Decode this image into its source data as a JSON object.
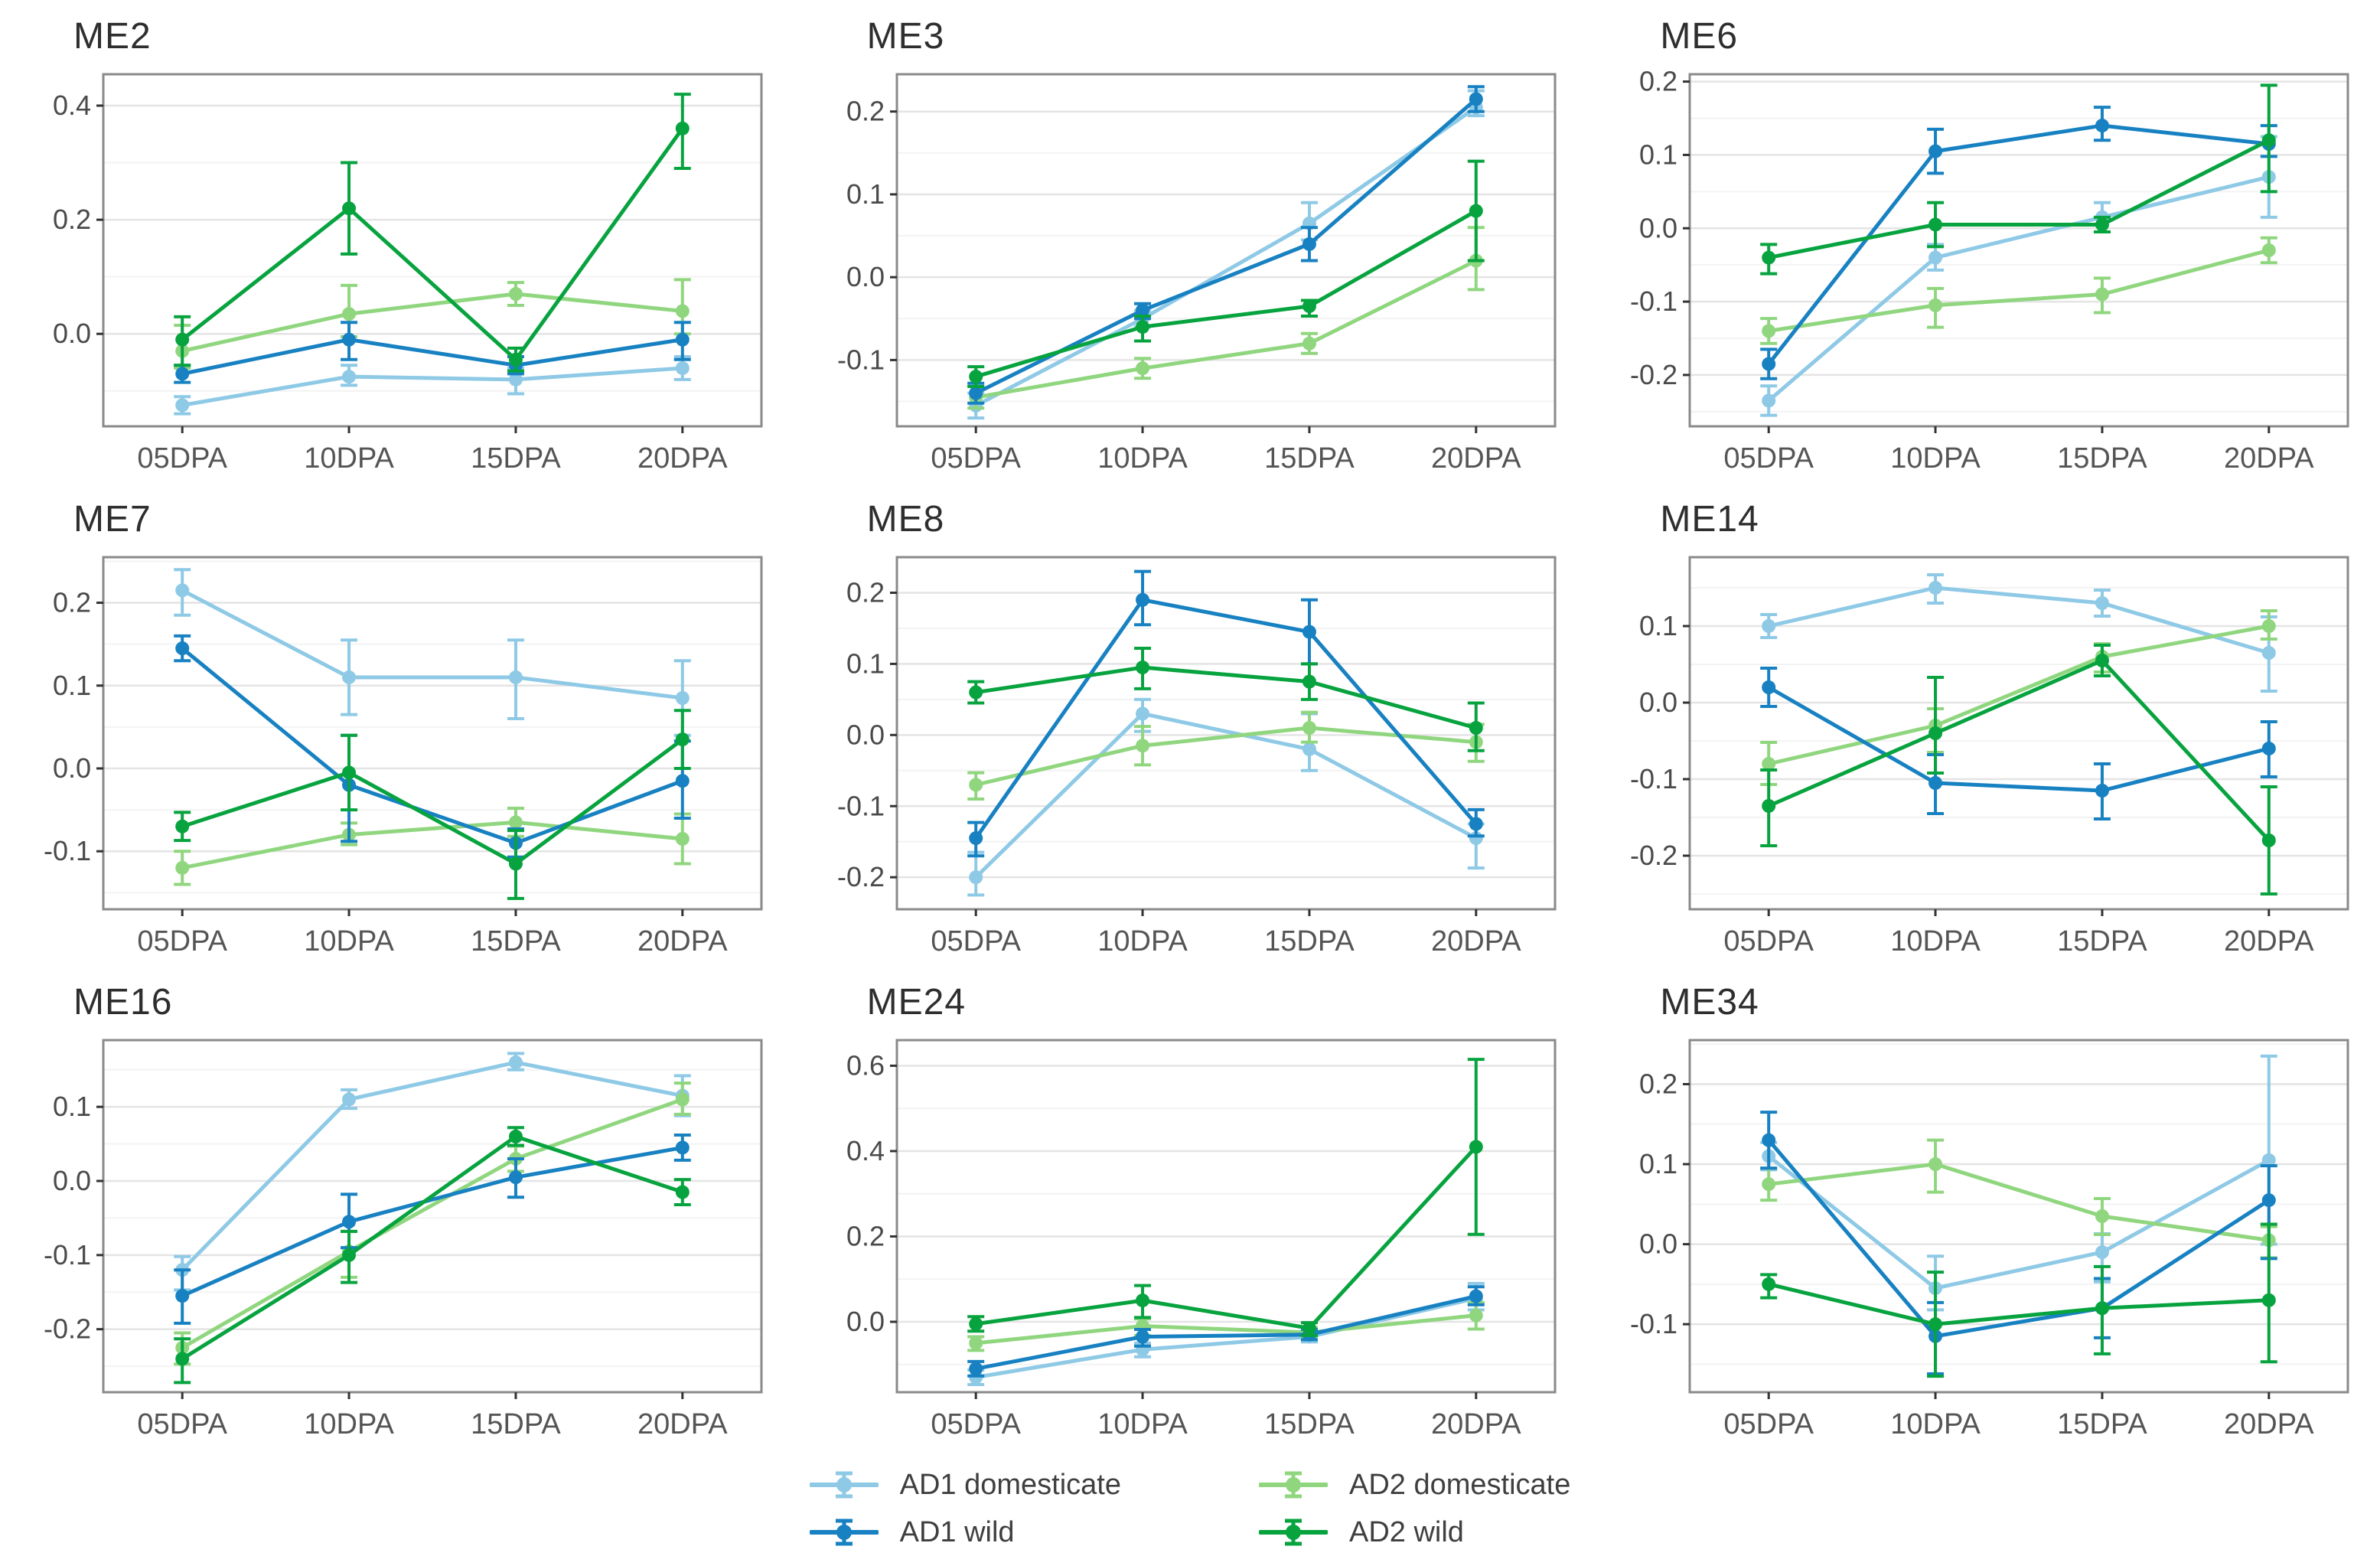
{
  "legend": {
    "items": [
      {
        "label": "AD1 domesticate",
        "color": "#8ec9e6"
      },
      {
        "label": "AD2 domesticate",
        "color": "#90d67f"
      },
      {
        "label": "AD1 wild",
        "color": "#1781c2"
      },
      {
        "label": "AD2 wild",
        "color": "#07a33f"
      }
    ]
  },
  "chart_data": [
    {
      "type": "line",
      "title": "ME2",
      "categories": [
        "05DPA",
        "10DPA",
        "15DPA",
        "20DPA"
      ],
      "ylim": [
        -0.162,
        0.455
      ],
      "yticks": [
        0.0,
        0.2,
        0.4
      ],
      "ytick_labels": [
        "0.0",
        "0.2",
        "0.4"
      ],
      "grid": "horizontal-only",
      "legend_position": "bottom",
      "series": [
        {
          "name": "AD1 domesticate",
          "color": "#8ec9e6",
          "values": [
            -0.125,
            -0.075,
            -0.08,
            -0.06
          ],
          "err_lo": [
            -0.14,
            -0.09,
            -0.105,
            -0.08
          ],
          "err_hi": [
            -0.11,
            -0.055,
            -0.06,
            -0.04
          ]
        },
        {
          "name": "AD2 domesticate",
          "color": "#90d67f",
          "values": [
            -0.03,
            0.035,
            0.07,
            0.04
          ],
          "err_lo": [
            -0.06,
            -0.005,
            0.05,
            0.0
          ],
          "err_hi": [
            0.015,
            0.085,
            0.09,
            0.095
          ]
        },
        {
          "name": "AD1 wild",
          "color": "#1781c2",
          "values": [
            -0.07,
            -0.01,
            -0.055,
            -0.01
          ],
          "err_lo": [
            -0.085,
            -0.045,
            -0.07,
            -0.045
          ],
          "err_hi": [
            -0.055,
            0.02,
            -0.04,
            0.02
          ]
        },
        {
          "name": "AD2 wild",
          "color": "#07a33f",
          "values": [
            -0.01,
            0.22,
            -0.045,
            0.36
          ],
          "err_lo": [
            -0.055,
            0.14,
            -0.065,
            0.29
          ],
          "err_hi": [
            0.03,
            0.3,
            -0.025,
            0.42
          ]
        }
      ]
    },
    {
      "type": "line",
      "title": "ME3",
      "categories": [
        "05DPA",
        "10DPA",
        "15DPA",
        "20DPA"
      ],
      "ylim": [
        -0.18,
        0.245
      ],
      "yticks": [
        -0.1,
        0.0,
        0.1,
        0.2
      ],
      "ytick_labels": [
        "-0.1",
        "0.0",
        "0.1",
        "0.2"
      ],
      "grid": "horizontal-only",
      "legend_position": "bottom",
      "series": [
        {
          "name": "AD1 domesticate",
          "color": "#8ec9e6",
          "values": [
            -0.155,
            -0.05,
            0.065,
            0.205
          ],
          "err_lo": [
            -0.17,
            -0.06,
            0.045,
            0.195
          ],
          "err_hi": [
            -0.14,
            -0.04,
            0.09,
            0.225
          ]
        },
        {
          "name": "AD2 domesticate",
          "color": "#90d67f",
          "values": [
            -0.145,
            -0.11,
            -0.08,
            0.02
          ],
          "err_lo": [
            -0.158,
            -0.122,
            -0.092,
            -0.015
          ],
          "err_hi": [
            -0.132,
            -0.098,
            -0.068,
            0.06
          ]
        },
        {
          "name": "AD1 wild",
          "color": "#1781c2",
          "values": [
            -0.14,
            -0.04,
            0.04,
            0.215
          ],
          "err_lo": [
            -0.152,
            -0.05,
            0.02,
            0.2
          ],
          "err_hi": [
            -0.128,
            -0.032,
            0.06,
            0.23
          ]
        },
        {
          "name": "AD2 wild",
          "color": "#07a33f",
          "values": [
            -0.12,
            -0.06,
            -0.035,
            0.08
          ],
          "err_lo": [
            -0.132,
            -0.077,
            -0.047,
            0.02
          ],
          "err_hi": [
            -0.108,
            -0.047,
            -0.028,
            0.14
          ]
        }
      ]
    },
    {
      "type": "line",
      "title": "ME6",
      "categories": [
        "05DPA",
        "10DPA",
        "15DPA",
        "20DPA"
      ],
      "ylim": [
        -0.27,
        0.21
      ],
      "yticks": [
        -0.2,
        -0.1,
        0.0,
        0.1,
        0.2
      ],
      "ytick_labels": [
        "-0.2",
        "-0.1",
        "0.0",
        "0.1",
        "0.2"
      ],
      "grid": "horizontal-only",
      "legend_position": "bottom",
      "series": [
        {
          "name": "AD1 domesticate",
          "color": "#8ec9e6",
          "values": [
            -0.235,
            -0.04,
            0.015,
            0.07
          ],
          "err_lo": [
            -0.255,
            -0.057,
            -0.005,
            0.015
          ],
          "err_hi": [
            -0.215,
            -0.022,
            0.035,
            0.125
          ]
        },
        {
          "name": "AD2 domesticate",
          "color": "#90d67f",
          "values": [
            -0.14,
            -0.105,
            -0.09,
            -0.03
          ],
          "err_lo": [
            -0.157,
            -0.135,
            -0.115,
            -0.047
          ],
          "err_hi": [
            -0.123,
            -0.082,
            -0.068,
            -0.013
          ]
        },
        {
          "name": "AD1 wild",
          "color": "#1781c2",
          "values": [
            -0.185,
            0.105,
            0.14,
            0.115
          ],
          "err_lo": [
            -0.205,
            0.075,
            0.12,
            0.098
          ],
          "err_hi": [
            -0.165,
            0.135,
            0.165,
            0.14
          ]
        },
        {
          "name": "AD2 wild",
          "color": "#07a33f",
          "values": [
            -0.04,
            0.005,
            0.005,
            0.12
          ],
          "err_lo": [
            -0.062,
            -0.025,
            -0.005,
            0.05
          ],
          "err_hi": [
            -0.022,
            0.035,
            0.015,
            0.195
          ]
        }
      ]
    },
    {
      "type": "line",
      "title": "ME7",
      "categories": [
        "05DPA",
        "10DPA",
        "15DPA",
        "20DPA"
      ],
      "ylim": [
        -0.17,
        0.255
      ],
      "yticks": [
        -0.1,
        0.0,
        0.1,
        0.2
      ],
      "ytick_labels": [
        "-0.1",
        "0.0",
        "0.1",
        "0.2"
      ],
      "grid": "horizontal-only",
      "legend_position": "bottom",
      "series": [
        {
          "name": "AD1 domesticate",
          "color": "#8ec9e6",
          "values": [
            0.215,
            0.11,
            0.11,
            0.085
          ],
          "err_lo": [
            0.185,
            0.065,
            0.06,
            0.04
          ],
          "err_hi": [
            0.24,
            0.155,
            0.155,
            0.13
          ]
        },
        {
          "name": "AD2 domesticate",
          "color": "#90d67f",
          "values": [
            -0.12,
            -0.08,
            -0.065,
            -0.085
          ],
          "err_lo": [
            -0.14,
            -0.092,
            -0.082,
            -0.115
          ],
          "err_hi": [
            -0.1,
            -0.066,
            -0.048,
            -0.055
          ]
        },
        {
          "name": "AD1 wild",
          "color": "#1781c2",
          "values": [
            0.145,
            -0.02,
            -0.09,
            -0.015
          ],
          "err_lo": [
            0.13,
            -0.088,
            -0.107,
            -0.06
          ],
          "err_hi": [
            0.16,
            0.04,
            -0.073,
            0.033
          ]
        },
        {
          "name": "AD2 wild",
          "color": "#07a33f",
          "values": [
            -0.07,
            -0.005,
            -0.115,
            0.035
          ],
          "err_lo": [
            -0.087,
            -0.05,
            -0.157,
            0.0
          ],
          "err_hi": [
            -0.053,
            0.04,
            -0.075,
            0.07
          ]
        }
      ]
    },
    {
      "type": "line",
      "title": "ME8",
      "categories": [
        "05DPA",
        "10DPA",
        "15DPA",
        "20DPA"
      ],
      "ylim": [
        -0.245,
        0.25
      ],
      "yticks": [
        -0.2,
        -0.1,
        0.0,
        0.1,
        0.2
      ],
      "ytick_labels": [
        "-0.2",
        "-0.1",
        "0.0",
        "0.1",
        "0.2"
      ],
      "grid": "horizontal-only",
      "legend_position": "bottom",
      "series": [
        {
          "name": "AD1 domesticate",
          "color": "#8ec9e6",
          "values": [
            -0.2,
            0.03,
            -0.02,
            -0.145
          ],
          "err_lo": [
            -0.225,
            0.005,
            -0.05,
            -0.187
          ],
          "err_hi": [
            -0.165,
            0.05,
            0.03,
            -0.125
          ]
        },
        {
          "name": "AD2 domesticate",
          "color": "#90d67f",
          "values": [
            -0.07,
            -0.015,
            0.01,
            -0.01
          ],
          "err_lo": [
            -0.09,
            -0.042,
            -0.01,
            -0.037
          ],
          "err_hi": [
            -0.053,
            0.012,
            0.032,
            0.015
          ]
        },
        {
          "name": "AD1 wild",
          "color": "#1781c2",
          "values": [
            -0.145,
            0.19,
            0.145,
            -0.125
          ],
          "err_lo": [
            -0.17,
            0.155,
            0.1,
            -0.142
          ],
          "err_hi": [
            -0.123,
            0.23,
            0.19,
            -0.105
          ]
        },
        {
          "name": "AD2 wild",
          "color": "#07a33f",
          "values": [
            0.06,
            0.095,
            0.075,
            0.01
          ],
          "err_lo": [
            0.045,
            0.065,
            0.05,
            -0.022
          ],
          "err_hi": [
            0.075,
            0.122,
            0.1,
            0.045
          ]
        }
      ]
    },
    {
      "type": "line",
      "title": "ME14",
      "categories": [
        "05DPA",
        "10DPA",
        "15DPA",
        "20DPA"
      ],
      "ylim": [
        -0.27,
        0.19
      ],
      "yticks": [
        -0.2,
        -0.1,
        0.0,
        0.1
      ],
      "ytick_labels": [
        "-0.2",
        "-0.1",
        "0.0",
        "0.1"
      ],
      "grid": "horizontal-only",
      "legend_position": "bottom",
      "series": [
        {
          "name": "AD1 domesticate",
          "color": "#8ec9e6",
          "values": [
            0.1,
            0.15,
            0.13,
            0.065
          ],
          "err_lo": [
            0.085,
            0.13,
            0.113,
            0.015
          ],
          "err_hi": [
            0.115,
            0.167,
            0.147,
            0.112
          ]
        },
        {
          "name": "AD2 domesticate",
          "color": "#90d67f",
          "values": [
            -0.08,
            -0.03,
            0.06,
            0.1
          ],
          "err_lo": [
            -0.107,
            -0.065,
            0.04,
            0.083
          ],
          "err_hi": [
            -0.052,
            -0.008,
            0.077,
            0.12
          ]
        },
        {
          "name": "AD1 wild",
          "color": "#1781c2",
          "values": [
            0.02,
            -0.105,
            -0.115,
            -0.06
          ],
          "err_lo": [
            -0.005,
            -0.145,
            -0.152,
            -0.097
          ],
          "err_hi": [
            0.045,
            -0.068,
            -0.08,
            -0.025
          ]
        },
        {
          "name": "AD2 wild",
          "color": "#07a33f",
          "values": [
            -0.135,
            -0.04,
            0.055,
            -0.18
          ],
          "err_lo": [
            -0.187,
            -0.092,
            0.035,
            -0.25
          ],
          "err_hi": [
            -0.088,
            0.033,
            0.075,
            -0.11
          ]
        }
      ]
    },
    {
      "type": "line",
      "title": "ME16",
      "categories": [
        "05DPA",
        "10DPA",
        "15DPA",
        "20DPA"
      ],
      "ylim": [
        -0.285,
        0.19
      ],
      "yticks": [
        -0.2,
        -0.1,
        0.0,
        0.1
      ],
      "ytick_labels": [
        "-0.2",
        "-0.1",
        "0.0",
        "0.1"
      ],
      "grid": "horizontal-only",
      "legend_position": "bottom",
      "series": [
        {
          "name": "AD1 domesticate",
          "color": "#8ec9e6",
          "values": [
            -0.12,
            0.11,
            0.16,
            0.115
          ],
          "err_lo": [
            -0.147,
            0.098,
            0.15,
            0.088
          ],
          "err_hi": [
            -0.102,
            0.123,
            0.172,
            0.142
          ]
        },
        {
          "name": "AD2 domesticate",
          "color": "#90d67f",
          "values": [
            -0.225,
            -0.095,
            0.03,
            0.11
          ],
          "err_lo": [
            -0.247,
            -0.13,
            0.013,
            0.09
          ],
          "err_hi": [
            -0.205,
            -0.068,
            0.047,
            0.132
          ]
        },
        {
          "name": "AD1 wild",
          "color": "#1781c2",
          "values": [
            -0.155,
            -0.055,
            0.005,
            0.045
          ],
          "err_lo": [
            -0.192,
            -0.09,
            -0.022,
            0.028
          ],
          "err_hi": [
            -0.12,
            -0.018,
            0.03,
            0.062
          ]
        },
        {
          "name": "AD2 wild",
          "color": "#07a33f",
          "values": [
            -0.24,
            -0.1,
            0.06,
            -0.015
          ],
          "err_lo": [
            -0.272,
            -0.137,
            0.048,
            -0.032
          ],
          "err_hi": [
            -0.213,
            -0.068,
            0.072,
            0.002
          ]
        }
      ]
    },
    {
      "type": "line",
      "title": "ME24",
      "categories": [
        "05DPA",
        "10DPA",
        "15DPA",
        "20DPA"
      ],
      "ylim": [
        -0.165,
        0.66
      ],
      "yticks": [
        0.0,
        0.2,
        0.4,
        0.6
      ],
      "ytick_labels": [
        "0.0",
        "0.2",
        "0.4",
        "0.6"
      ],
      "grid": "horizontal-only",
      "legend_position": "bottom",
      "series": [
        {
          "name": "AD1 domesticate",
          "color": "#8ec9e6",
          "values": [
            -0.13,
            -0.065,
            -0.035,
            0.055
          ],
          "err_lo": [
            -0.147,
            -0.082,
            -0.047,
            0.028
          ],
          "err_hi": [
            -0.113,
            -0.05,
            -0.023,
            0.09
          ]
        },
        {
          "name": "AD2 domesticate",
          "color": "#90d67f",
          "values": [
            -0.05,
            -0.01,
            -0.025,
            0.015
          ],
          "err_lo": [
            -0.067,
            -0.032,
            -0.037,
            -0.017
          ],
          "err_hi": [
            -0.035,
            0.007,
            -0.013,
            0.045
          ]
        },
        {
          "name": "AD1 wild",
          "color": "#1781c2",
          "values": [
            -0.11,
            -0.035,
            -0.03,
            0.06
          ],
          "err_lo": [
            -0.127,
            -0.057,
            -0.042,
            0.04
          ],
          "err_hi": [
            -0.093,
            -0.018,
            -0.018,
            0.082
          ]
        },
        {
          "name": "AD2 wild",
          "color": "#07a33f",
          "values": [
            -0.005,
            0.05,
            -0.015,
            0.41
          ],
          "err_lo": [
            -0.022,
            0.01,
            -0.032,
            0.205
          ],
          "err_hi": [
            0.012,
            0.085,
            -0.002,
            0.615
          ]
        }
      ]
    },
    {
      "type": "line",
      "title": "ME34",
      "categories": [
        "05DPA",
        "10DPA",
        "15DPA",
        "20DPA"
      ],
      "ylim": [
        -0.185,
        0.255
      ],
      "yticks": [
        -0.1,
        0.0,
        0.1,
        0.2
      ],
      "ytick_labels": [
        "-0.1",
        "0.0",
        "0.1",
        "0.2"
      ],
      "grid": "horizontal-only",
      "legend_position": "bottom",
      "series": [
        {
          "name": "AD1 domesticate",
          "color": "#8ec9e6",
          "values": [
            0.11,
            -0.055,
            -0.01,
            0.105
          ],
          "err_lo": [
            0.093,
            -0.082,
            -0.047,
            0.0
          ],
          "err_hi": [
            0.127,
            -0.015,
            0.013,
            0.235
          ]
        },
        {
          "name": "AD2 domesticate",
          "color": "#90d67f",
          "values": [
            0.075,
            0.1,
            0.035,
            0.005
          ],
          "err_lo": [
            0.055,
            0.065,
            0.012,
            -0.017
          ],
          "err_hi": [
            0.095,
            0.13,
            0.057,
            0.022
          ]
        },
        {
          "name": "AD1 wild",
          "color": "#1781c2",
          "values": [
            0.13,
            -0.115,
            -0.08,
            0.055
          ],
          "err_lo": [
            0.095,
            -0.162,
            -0.117,
            -0.018
          ],
          "err_hi": [
            0.165,
            -0.073,
            -0.043,
            0.098
          ]
        },
        {
          "name": "AD2 wild",
          "color": "#07a33f",
          "values": [
            -0.05,
            -0.1,
            -0.08,
            -0.07
          ],
          "err_lo": [
            -0.067,
            -0.165,
            -0.137,
            -0.147
          ],
          "err_hi": [
            -0.038,
            -0.035,
            -0.028,
            0.025
          ]
        }
      ]
    }
  ]
}
